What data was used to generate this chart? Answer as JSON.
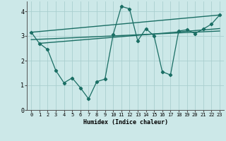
{
  "xlabel": "Humidex (Indice chaleur)",
  "bg_color": "#cce8e8",
  "grid_color": "#aacfcf",
  "line_color": "#1a6e64",
  "xlim": [
    -0.5,
    23.5
  ],
  "ylim": [
    0,
    4.4
  ],
  "xticks": [
    0,
    1,
    2,
    3,
    4,
    5,
    6,
    7,
    8,
    9,
    10,
    11,
    12,
    13,
    14,
    15,
    16,
    17,
    18,
    19,
    20,
    21,
    22,
    23
  ],
  "yticks": [
    0,
    1,
    2,
    3,
    4
  ],
  "line1_x": [
    0,
    1,
    2,
    3,
    4,
    5,
    6,
    7,
    8,
    9,
    10,
    11,
    12,
    13,
    14,
    15,
    16,
    17,
    18,
    19,
    20,
    21,
    22,
    23
  ],
  "line1_y": [
    3.15,
    2.7,
    2.45,
    1.6,
    1.1,
    1.3,
    0.9,
    0.45,
    1.15,
    1.25,
    3.05,
    4.2,
    4.1,
    2.8,
    3.3,
    3.0,
    1.55,
    1.42,
    3.2,
    3.25,
    3.1,
    3.28,
    3.48,
    3.85
  ],
  "line2_x": [
    0,
    23
  ],
  "line2_y": [
    3.15,
    3.85
  ],
  "line3_x": [
    0,
    23
  ],
  "line3_y": [
    2.85,
    3.2
  ],
  "line4_x": [
    1,
    23
  ],
  "line4_y": [
    2.7,
    3.3
  ]
}
